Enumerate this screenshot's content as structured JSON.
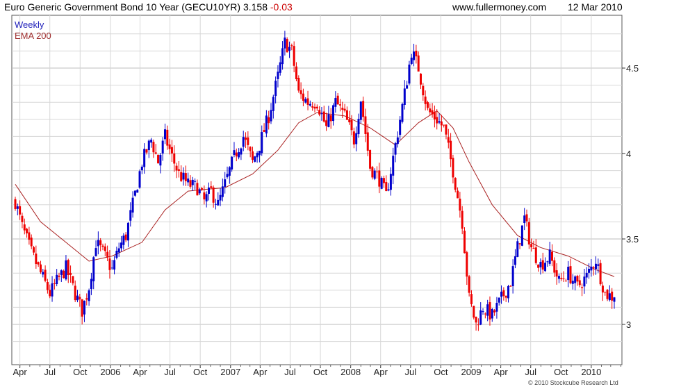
{
  "header": {
    "title": "Euro Generic Government Bond 10 Year (GECU10YR)",
    "last": "3.158",
    "change": "-0.03",
    "site": "www.fullermoney.com",
    "date": "12 Mar 2010"
  },
  "legend": {
    "weekly": "Weekly",
    "ema": "EMA 200"
  },
  "footer": {
    "copyright": "© 2010 Stockcube Research Ltd"
  },
  "colors": {
    "up": "#0000cc",
    "down": "#ee0000",
    "ema": "#aa2222",
    "grid": "#d7d7d7"
  },
  "chart_data": {
    "type": "candlestick",
    "title": "Euro Generic Government Bond 10 Year (GECU10YR)",
    "ylim": [
      2.8,
      4.8
    ],
    "y_ticks": [
      3,
      3.5,
      4,
      4.5
    ],
    "y_tick_labels": [
      "3",
      "3.5",
      "4",
      "4.5"
    ],
    "x_tick_labels": [
      "Apr",
      "Jul",
      "Oct",
      "2006",
      "Apr",
      "Jul",
      "Oct",
      "2007",
      "Apr",
      "Jul",
      "Oct",
      "2008",
      "Apr",
      "Jul",
      "Oct",
      "2009",
      "Apr",
      "Jul",
      "Oct",
      "2010"
    ],
    "x_start": "2005-03-18",
    "x_end": "2010-03-12",
    "grid": true,
    "legend_position": "top-left",
    "price_series": {
      "name": "Weekly",
      "close_points": [
        [
          "2005-03-18",
          3.72
        ],
        [
          "2005-04-08",
          3.57
        ],
        [
          "2005-05-06",
          3.42
        ],
        [
          "2005-06-03",
          3.3
        ],
        [
          "2005-07-01",
          3.18
        ],
        [
          "2005-07-22",
          3.25
        ],
        [
          "2005-08-19",
          3.33
        ],
        [
          "2005-09-16",
          3.18
        ],
        [
          "2005-10-07",
          3.08
        ],
        [
          "2005-10-28",
          3.22
        ],
        [
          "2005-11-18",
          3.48
        ],
        [
          "2005-12-09",
          3.42
        ],
        [
          "2006-01-06",
          3.32
        ],
        [
          "2006-01-27",
          3.45
        ],
        [
          "2006-02-17",
          3.52
        ],
        [
          "2006-03-10",
          3.7
        ],
        [
          "2006-04-07",
          3.95
        ],
        [
          "2006-05-05",
          4.08
        ],
        [
          "2006-05-26",
          3.95
        ],
        [
          "2006-06-16",
          4.1
        ],
        [
          "2006-07-07",
          3.98
        ],
        [
          "2006-07-28",
          3.88
        ],
        [
          "2006-08-25",
          3.82
        ],
        [
          "2006-09-22",
          3.8
        ],
        [
          "2006-10-13",
          3.72
        ],
        [
          "2006-11-03",
          3.78
        ],
        [
          "2006-11-24",
          3.7
        ],
        [
          "2006-12-15",
          3.82
        ],
        [
          "2007-01-12",
          3.98
        ],
        [
          "2007-02-09",
          4.1
        ],
        [
          "2007-03-09",
          3.95
        ],
        [
          "2007-03-30",
          4.05
        ],
        [
          "2007-04-27",
          4.22
        ],
        [
          "2007-05-25",
          4.45
        ],
        [
          "2007-06-15",
          4.65
        ],
        [
          "2007-07-06",
          4.6
        ],
        [
          "2007-07-27",
          4.35
        ],
        [
          "2007-08-24",
          4.3
        ],
        [
          "2007-09-21",
          4.3
        ],
        [
          "2007-10-19",
          4.15
        ],
        [
          "2007-11-16",
          4.3
        ],
        [
          "2007-12-14",
          4.22
        ],
        [
          "2008-01-11",
          4.08
        ],
        [
          "2008-02-01",
          4.32
        ],
        [
          "2008-02-29",
          3.92
        ],
        [
          "2008-03-28",
          3.85
        ],
        [
          "2008-04-18",
          3.75
        ],
        [
          "2008-05-16",
          4.05
        ],
        [
          "2008-06-13",
          4.35
        ],
        [
          "2008-07-04",
          4.6
        ],
        [
          "2008-07-25",
          4.5
        ],
        [
          "2008-08-22",
          4.25
        ],
        [
          "2008-09-19",
          4.2
        ],
        [
          "2008-10-10",
          4.15
        ],
        [
          "2008-11-07",
          3.9
        ],
        [
          "2008-12-05",
          3.6
        ],
        [
          "2008-12-26",
          3.15
        ],
        [
          "2009-01-16",
          3.0
        ],
        [
          "2009-02-06",
          3.1
        ],
        [
          "2009-03-06",
          3.05
        ],
        [
          "2009-04-03",
          3.15
        ],
        [
          "2009-05-01",
          3.25
        ],
        [
          "2009-05-22",
          3.45
        ],
        [
          "2009-06-12",
          3.62
        ],
        [
          "2009-07-03",
          3.45
        ],
        [
          "2009-07-31",
          3.35
        ],
        [
          "2009-08-28",
          3.4
        ],
        [
          "2009-09-25",
          3.25
        ],
        [
          "2009-10-23",
          3.3
        ],
        [
          "2009-11-20",
          3.22
        ],
        [
          "2009-12-18",
          3.28
        ],
        [
          "2010-01-15",
          3.38
        ],
        [
          "2010-02-12",
          3.18
        ],
        [
          "2010-03-12",
          3.158
        ]
      ]
    },
    "ema_series": {
      "name": "EMA 200",
      "points": [
        [
          "2005-03-18",
          3.82
        ],
        [
          "2005-06-03",
          3.6
        ],
        [
          "2005-08-19",
          3.48
        ],
        [
          "2005-10-28",
          3.37
        ],
        [
          "2006-01-06",
          3.4
        ],
        [
          "2006-04-07",
          3.48
        ],
        [
          "2006-06-16",
          3.67
        ],
        [
          "2006-08-25",
          3.78
        ],
        [
          "2006-10-13",
          3.79
        ],
        [
          "2006-12-15",
          3.8
        ],
        [
          "2007-03-09",
          3.88
        ],
        [
          "2007-05-25",
          4.02
        ],
        [
          "2007-07-27",
          4.18
        ],
        [
          "2007-09-21",
          4.24
        ],
        [
          "2007-12-14",
          4.22
        ],
        [
          "2008-02-29",
          4.15
        ],
        [
          "2008-05-16",
          4.05
        ],
        [
          "2008-07-25",
          4.18
        ],
        [
          "2008-09-19",
          4.25
        ],
        [
          "2008-11-07",
          4.15
        ],
        [
          "2008-12-26",
          3.95
        ],
        [
          "2009-03-06",
          3.7
        ],
        [
          "2009-05-22",
          3.52
        ],
        [
          "2009-07-31",
          3.45
        ],
        [
          "2009-10-23",
          3.4
        ],
        [
          "2010-01-15",
          3.32
        ],
        [
          "2010-03-12",
          3.28
        ]
      ]
    }
  }
}
